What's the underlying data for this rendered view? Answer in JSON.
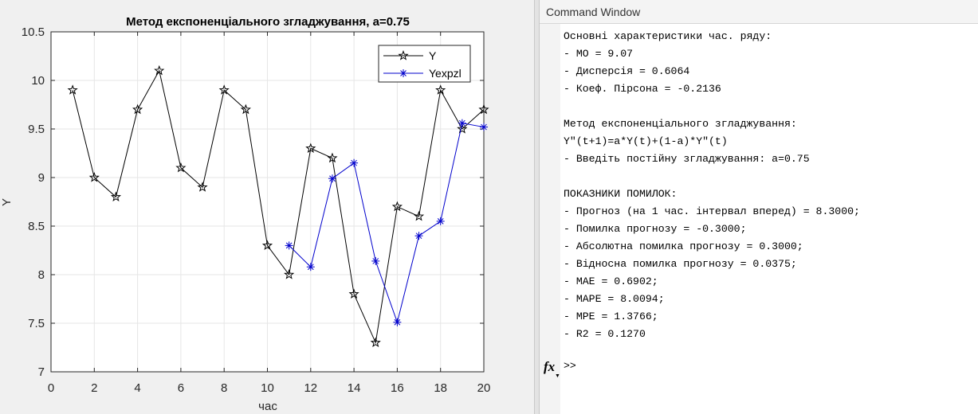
{
  "figure": {
    "chart_data": {
      "type": "line",
      "title": "Метод експоненціального згладжування, a=0.75",
      "xlabel": "час",
      "ylabel": "Y",
      "xlim": [
        0,
        20
      ],
      "ylim": [
        7,
        10.5
      ],
      "xticks": [
        "0",
        "2",
        "4",
        "6",
        "8",
        "10",
        "12",
        "14",
        "16",
        "18",
        "20"
      ],
      "yticks": [
        "7",
        "7.5",
        "8",
        "8.5",
        "9",
        "9.5",
        "10",
        "10.5"
      ],
      "grid": true,
      "legend_position": "top-right",
      "series": [
        {
          "name": "Y",
          "color": "#000000",
          "marker": "pentagram",
          "x": [
            1,
            2,
            3,
            4,
            5,
            6,
            7,
            8,
            9,
            10,
            11,
            12,
            13,
            14,
            15,
            16,
            17,
            18,
            19,
            20
          ],
          "y": [
            9.9,
            9.0,
            8.8,
            9.7,
            10.1,
            9.1,
            8.9,
            9.9,
            9.7,
            8.3,
            8.0,
            9.3,
            9.2,
            7.8,
            7.3,
            8.7,
            8.6,
            9.9,
            9.5,
            9.7
          ]
        },
        {
          "name": "Yexpzl",
          "color": "#0000cc",
          "marker": "asterisk",
          "x": [
            11,
            12,
            13,
            14,
            15,
            16,
            17,
            18,
            19,
            20
          ],
          "y": [
            8.3,
            8.08,
            8.99,
            9.15,
            8.14,
            7.51,
            8.4,
            8.55,
            9.56,
            9.52
          ]
        }
      ]
    }
  },
  "command_window": {
    "title": "Command Window",
    "lines": [
      "Основні характеристики час. ряду:",
      "- МО = 9.07",
      "- Дисперсія = 0.6064",
      "- Коеф. Пірсона = -0.2136",
      "",
      "Метод експоненціального згладжування:",
      "Y\"(t+1)=a*Y(t)+(1-a)*Y\"(t)",
      "- Введіть постійну згладжування: a=0.75",
      "",
      "ПОКАЗНИКИ ПОМИЛОК:",
      "- Прогноз (на 1 час. інтервал вперед) = 8.3000;",
      "- Помилка прогнозу = -0.3000;",
      "- Абсолютна помилка прогнозу = 0.3000;",
      "- Відносна помилка прогнозу = 0.0375;",
      "- MAE = 0.6902;",
      "- MAPE = 8.0094;",
      "- MPE = 1.3766;",
      "- R2 = 0.1270"
    ],
    "fx_label": "fx",
    "prompt": ">>"
  }
}
